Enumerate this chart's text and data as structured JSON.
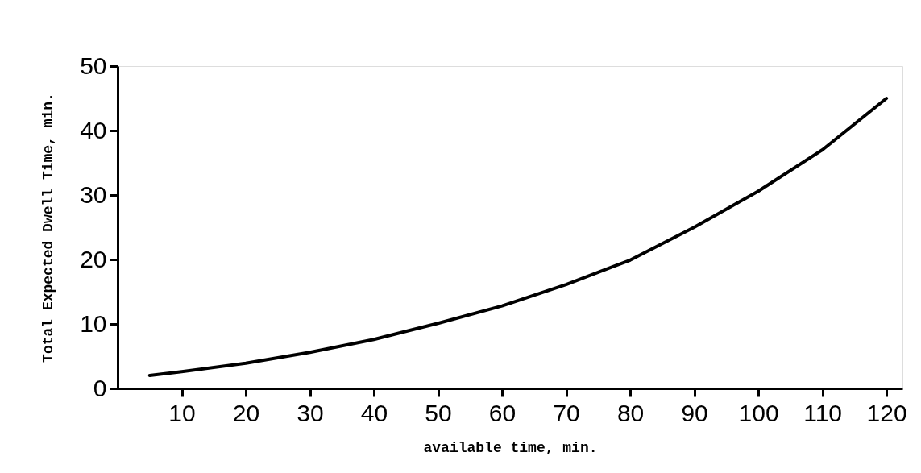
{
  "chart_data": {
    "type": "line",
    "xlabel": "available time, min.",
    "ylabel": "Total Expected Dwell Time, min.",
    "x": [
      5,
      10,
      20,
      30,
      40,
      50,
      60,
      70,
      80,
      90,
      100,
      110,
      120
    ],
    "series": [
      {
        "color": "#000000",
        "values": [
          2,
          2.6,
          3.9,
          5.6,
          7.6,
          10.1,
          12.8,
          16.1,
          19.9,
          25,
          30.6,
          37,
          45
        ]
      }
    ],
    "xlim": [
      0,
      122.5
    ],
    "ylim": [
      0,
      50
    ],
    "xticks": [
      10,
      20,
      30,
      40,
      50,
      60,
      70,
      80,
      90,
      100,
      110,
      120
    ],
    "yticks": [
      0,
      10,
      20,
      30,
      40,
      50
    ],
    "grid": false,
    "legend": false,
    "marker": "none",
    "line_style": "solid"
  }
}
